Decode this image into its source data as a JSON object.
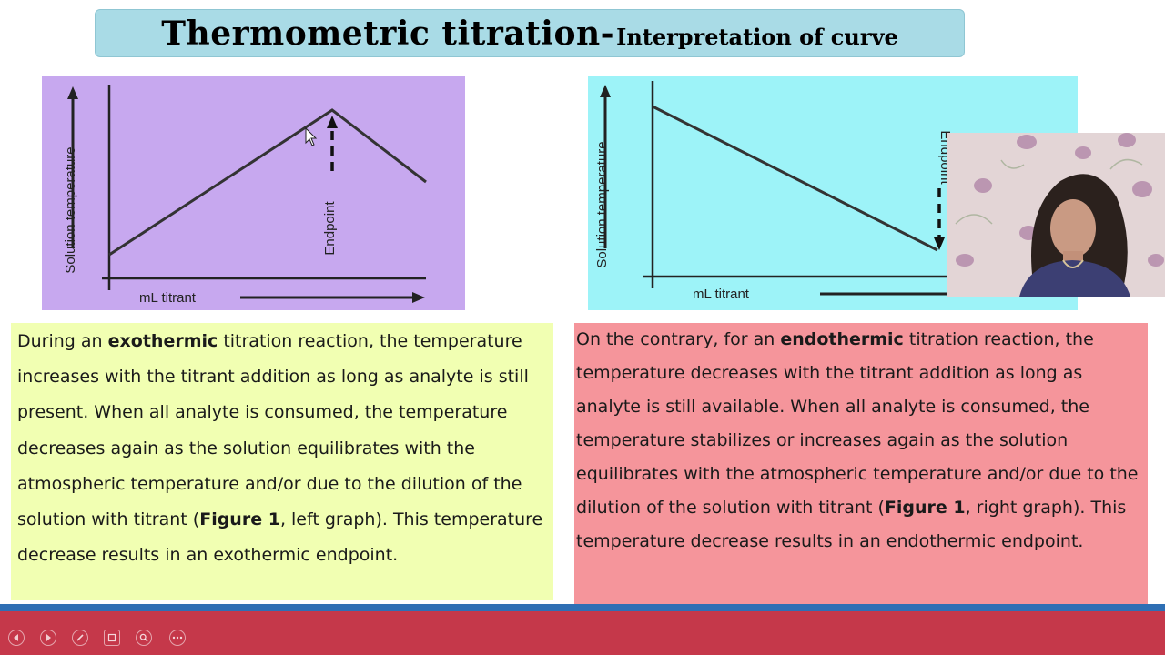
{
  "slide": {
    "title_main": "Thermometric  titration-",
    "title_sub": "Interpretation  of curve"
  },
  "left_graph": {
    "ylabel": "Solution temperature",
    "xlabel": "mL titrant",
    "endpoint_label": "Endpoint",
    "background": "#c7a8ef"
  },
  "right_graph": {
    "ylabel": "Solution temperature",
    "xlabel": "mL titrant",
    "endpoint_label": "Endpoint",
    "background": "#9df3f8"
  },
  "left_text": {
    "p1": "During an ",
    "b1": "exothermic",
    "p2": " titration reaction, the temperature increases with the titrant addition as long as analyte is still present. When all analyte is consumed, the temperature decreases again as the solution equilibrates with the atmospheric temperature and/or due to the dilution of the solution with titrant (",
    "b2": "Figure 1",
    "p3": ", left graph). This temperature decrease results in an exothermic endpoint."
  },
  "right_text": {
    "p1": "On the contrary, for an ",
    "b1": "endothermic",
    "p2": " titration reaction, the temperature decreases with the titrant addition as long as analyte is still available. When all analyte is consumed, the temperature stabilizes or increases again as the solution equilibrates with the atmospheric temperature and/or due to the dilution of the solution with titrant (",
    "b2": "Figure 1",
    "p3": ", right graph). This temperature decrease results in an endothermic endpoint."
  },
  "controls": {
    "icons": [
      "previous-icon",
      "next-icon",
      "pen-icon",
      "slides-icon",
      "zoom-icon",
      "more-icon"
    ]
  },
  "colors": {
    "left_text_bg": "#f1ffb2",
    "right_text_bg": "#f5959b",
    "title_bg": "#a9dbe6",
    "bottom_bar": "#c5384a"
  }
}
